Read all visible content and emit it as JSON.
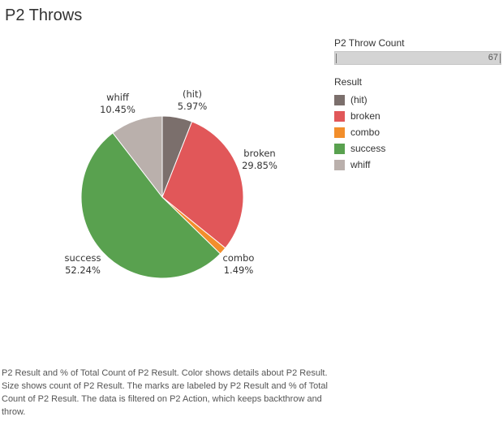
{
  "title": "P2 Throws",
  "count_filter": {
    "label": "P2 Throw Count",
    "value": "67",
    "fraction": 1.0
  },
  "legend": {
    "title": "Result",
    "items": [
      {
        "label": "(hit)",
        "color": "#7b6f6c"
      },
      {
        "label": "broken",
        "color": "#e15759"
      },
      {
        "label": "combo",
        "color": "#f28e2b"
      },
      {
        "label": "success",
        "color": "#59a14f"
      },
      {
        "label": "whiff",
        "color": "#bab0ac"
      }
    ]
  },
  "chart_data": {
    "type": "pie",
    "slices": [
      {
        "name": "(hit)",
        "percent": 5.97,
        "percent_label": "5.97%",
        "color": "#7b6f6c"
      },
      {
        "name": "broken",
        "percent": 29.85,
        "percent_label": "29.85%",
        "color": "#e15759"
      },
      {
        "name": "combo",
        "percent": 1.49,
        "percent_label": "1.49%",
        "color": "#f28e2b"
      },
      {
        "name": "success",
        "percent": 52.24,
        "percent_label": "52.24%",
        "color": "#59a14f"
      },
      {
        "name": "whiff",
        "percent": 10.45,
        "percent_label": "10.45%",
        "color": "#bab0ac"
      }
    ]
  },
  "footnote": "P2 Result and % of Total Count of P2 Result.  Color shows details about P2 Result.  Size shows count of P2 Result.  The marks are labeled by P2 Result and % of Total Count of P2 Result. The data is filtered on P2 Action, which keeps backthrow and throw."
}
